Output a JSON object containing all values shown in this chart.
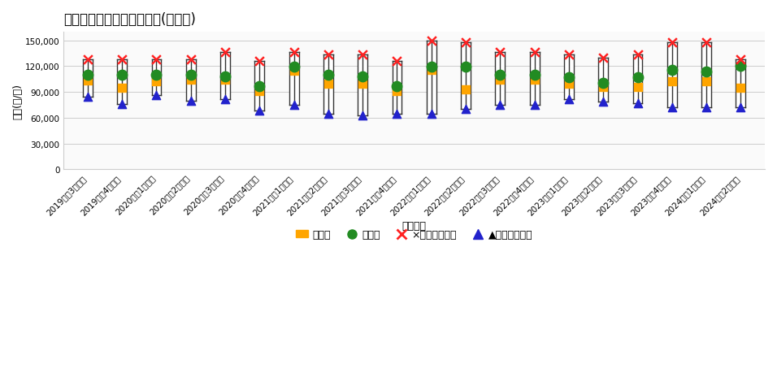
{
  "title": "愛知県岡崎市の基本統計量(住宅地)",
  "xlabel": "取引時点",
  "ylabel": "金額(円/㎡)",
  "ylim": [
    0,
    160000
  ],
  "yticks": [
    0,
    30000,
    60000,
    90000,
    120000,
    150000
  ],
  "periods": [
    "2019年第3四半期",
    "2019年第4四半期",
    "2020年第1四半期",
    "2020年第2四半期",
    "2020年第3四半期",
    "2020年第4四半期",
    "2021年第1四半期",
    "2021年第2四半期",
    "2021年第3四半期",
    "2021年第4四半期",
    "2022年第1四半期",
    "2022年第2四半期",
    "2022年第3四半期",
    "2022年第4四半期",
    "2023年第1四半期",
    "2023年第2四半期",
    "2023年第3四半期",
    "2023年第4四半期",
    "2024年第1四半期",
    "2024年第2四半期"
  ],
  "mean": [
    103000,
    95000,
    102000,
    104000,
    104000,
    91000,
    115000,
    100000,
    100000,
    91000,
    116000,
    93000,
    104000,
    104000,
    100000,
    96000,
    96000,
    102000,
    102000,
    95000
  ],
  "median": [
    110000,
    110000,
    110000,
    110000,
    108000,
    97000,
    119000,
    110000,
    108000,
    97000,
    119000,
    119000,
    110000,
    110000,
    107000,
    101000,
    107000,
    116000,
    114000,
    120000
  ],
  "q3": [
    128000,
    128000,
    128000,
    128000,
    136000,
    126000,
    136000,
    134000,
    134000,
    126000,
    150000,
    148000,
    136000,
    136000,
    134000,
    130000,
    134000,
    148000,
    148000,
    128000
  ],
  "q1": [
    84000,
    76000,
    86000,
    80000,
    82000,
    68000,
    75000,
    65000,
    63000,
    65000,
    65000,
    70000,
    75000,
    75000,
    82000,
    79000,
    77000,
    72000,
    72000,
    72000
  ],
  "mean_color": "#FFA500",
  "median_color": "#228B22",
  "q3_color": "#FF2222",
  "q1_color": "#2222CC",
  "background_color": "#FFFFFF",
  "plot_bg_color": "#FAFAFA",
  "grid_color": "#CCCCCC",
  "title_fontsize": 12,
  "label_fontsize": 9,
  "tick_fontsize": 7.5,
  "box_width": 0.28,
  "box_edge_color": "#555555",
  "line_color": "#333333",
  "legend_mean_label": "平均値",
  "legend_median_label": "中央値",
  "legend_q3_label": "×第３四分位数",
  "legend_q1_label": "▲第１四分位数"
}
